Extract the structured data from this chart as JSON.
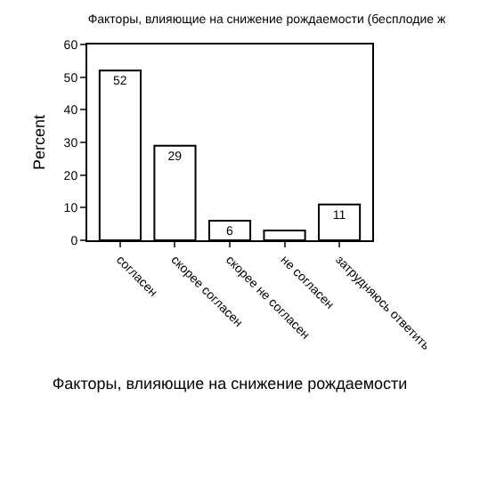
{
  "chart_data": {
    "type": "bar",
    "title": "Факторы, влияющие на снижение рождаемости (бесплодие ж",
    "categories": [
      "согласен",
      "скорее согласен",
      "скорее не согласен",
      "не согласен",
      "затрудняюсь ответить"
    ],
    "values": [
      52,
      29,
      6,
      3,
      11
    ],
    "value_labels": [
      "52",
      "29",
      "6",
      null,
      "11"
    ],
    "color": "#ffffff",
    "xlabel": "Факторы, влияющие на снижение рождаемости",
    "ylabel": "Percent",
    "ylim": [
      0,
      60
    ],
    "yticks": [
      0,
      10,
      20,
      30,
      40,
      50,
      60
    ],
    "grid": false,
    "legend": false
  }
}
